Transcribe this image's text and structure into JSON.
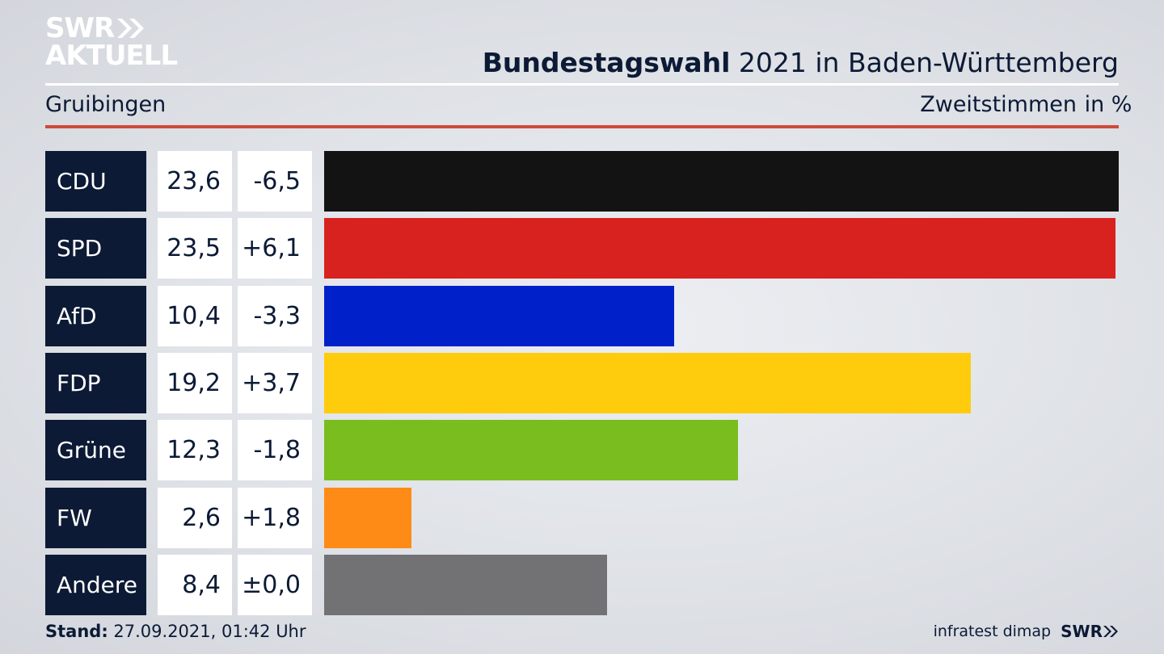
{
  "brand": {
    "line1": "SWR",
    "line2": "AKTUELL"
  },
  "title": {
    "bold": "Bundestagswahl",
    "rest": "2021 in Baden-Württemberg"
  },
  "subtitle": "Gruibingen",
  "metric": "Zweitstimmen",
  "unit": "in %",
  "colors": {
    "navy": "#0c1a35",
    "accent_rule": "#cf4a3a"
  },
  "chart_data": {
    "type": "bar",
    "orientation": "horizontal",
    "categories": [
      "CDU",
      "SPD",
      "AfD",
      "FDP",
      "Grüne",
      "FW",
      "Andere"
    ],
    "values": [
      23.6,
      23.5,
      10.4,
      19.2,
      12.3,
      2.6,
      8.4
    ],
    "value_labels": [
      "23,6",
      "23,5",
      "10,4",
      "19,2",
      "12,3",
      "2,6",
      "8,4"
    ],
    "change_labels": [
      "-6,5",
      "+6,1",
      "-3,3",
      "+3,7",
      "-1,8",
      "+1,8",
      "±0,0"
    ],
    "colors": [
      "#131313",
      "#d82220",
      "#0021c9",
      "#fecc0c",
      "#7abd1e",
      "#ff8b17",
      "#727274"
    ],
    "xlim": [
      0,
      23.6
    ]
  },
  "footer": {
    "stand_label": "Stand:",
    "stand_value": "27.09.2021, 01:42 Uhr",
    "source": "infratest dimap",
    "logo": "SWR"
  }
}
